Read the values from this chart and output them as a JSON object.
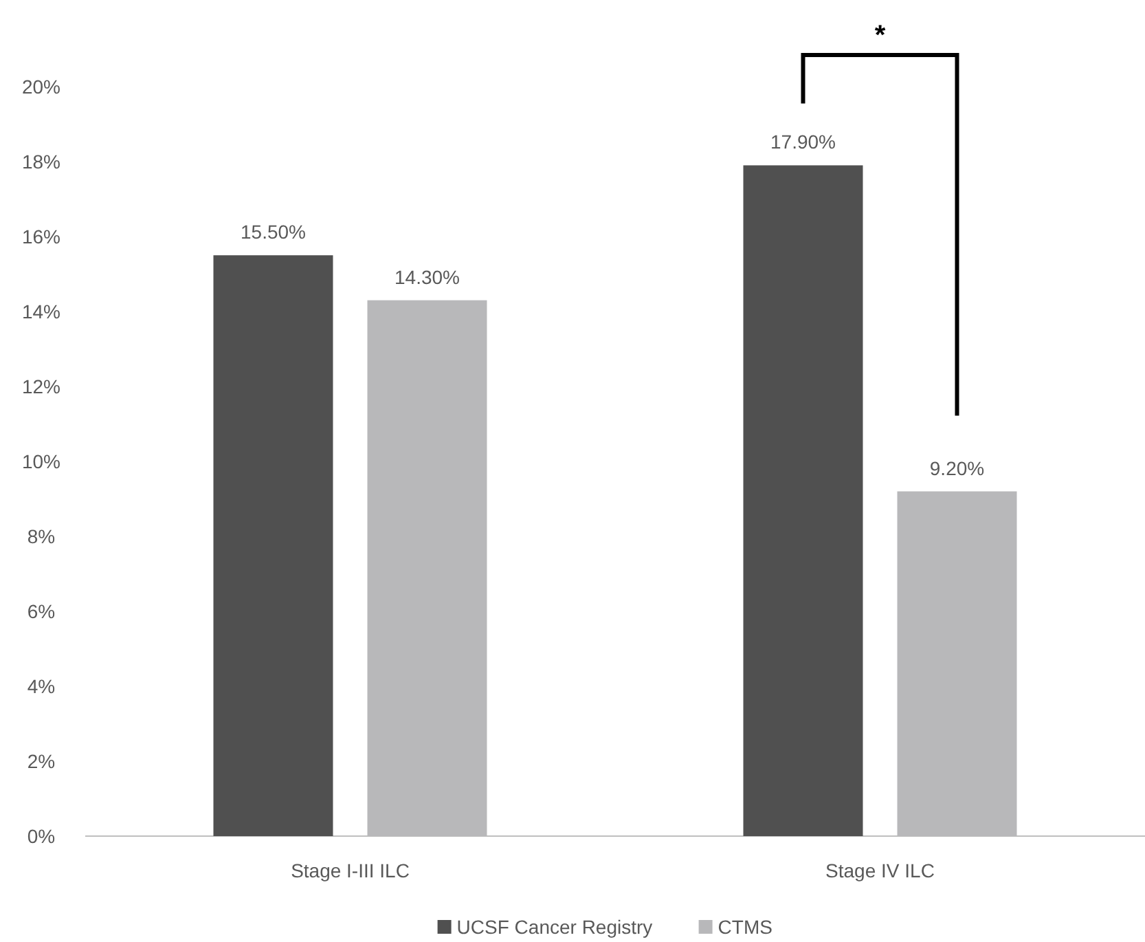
{
  "chart_data": {
    "type": "bar",
    "categories": [
      "Stage I-III ILC",
      "Stage IV ILC"
    ],
    "series": [
      {
        "name": "UCSF Cancer Registry",
        "color": "#505050",
        "values": [
          15.5,
          17.9
        ],
        "value_labels": [
          "15.50%",
          "17.90%"
        ]
      },
      {
        "name": "CTMS",
        "color": "#b8b8ba",
        "values": [
          14.3,
          9.2
        ],
        "value_labels": [
          "14.30%",
          "9.20%"
        ]
      }
    ],
    "ylim": [
      0,
      20
    ],
    "yticks": [
      {
        "value": 0,
        "label": "0%"
      },
      {
        "value": 2,
        "label": "2%"
      },
      {
        "value": 4,
        "label": "4%"
      },
      {
        "value": 6,
        "label": "6%"
      },
      {
        "value": 8,
        "label": "8%"
      },
      {
        "value": 10,
        "label": "10%"
      },
      {
        "value": 12,
        "label": "12%"
      },
      {
        "value": 14,
        "label": "14%"
      },
      {
        "value": 16,
        "label": "16%"
      },
      {
        "value": 18,
        "label": "18%"
      },
      {
        "value": 20,
        "label": "20%"
      }
    ],
    "grid": false,
    "legend": "bottom",
    "annotations": [
      "*"
    ]
  }
}
